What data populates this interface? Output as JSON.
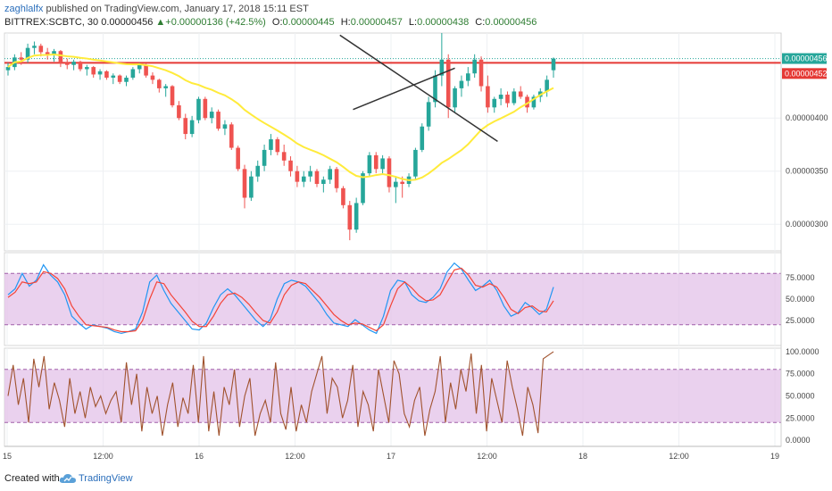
{
  "header": {
    "author": "zaghlalfx",
    "published": "published on TradingView.com, January 17, 2018 15:11 EST",
    "symbol": "BITTREX:SCBTC, 30",
    "last": "0.00000456",
    "change_arrow": "▲",
    "change": "+0.00000136 (+42.5%)",
    "o_label": "O:",
    "o": "0.00000445",
    "h_label": "H:",
    "h": "0.00000457",
    "l_label": "L:",
    "l": "0.00000438",
    "c_label": "C:",
    "c": "0.00000456"
  },
  "footer": {
    "created": "Created with",
    "brand": "TradingView",
    "logo_icon": "tradingview-cloud-icon"
  },
  "colors": {
    "up": "#26a69a",
    "down": "#ef5350",
    "ma": "#ffeb3b",
    "resistance": "#e53935",
    "trendline": "#333333",
    "stoch_k": "#2196f3",
    "stoch_d": "#f44336",
    "stoch_band": "#e1bee7",
    "osc": "#a0522d",
    "last_badge": "#26a69a",
    "res_badge": "#e53935"
  },
  "chart_data": [
    {
      "type": "candlestick",
      "symbol": "BITTREX:SCBTC",
      "interval": "30",
      "x_ticks": [
        "15",
        "12:00",
        "16",
        "12:00",
        "17",
        "12:00",
        "18",
        "12:00",
        "19"
      ],
      "y_ticks": [
        "0.00000400",
        "0.00000350",
        "0.00000300"
      ],
      "y_tick_values": [
        400,
        350,
        300
      ],
      "ylim": [
        275,
        480
      ],
      "unit_note": "values x 1e-8",
      "last_price_label": "0.00000456",
      "resistance_label": "0.00000452",
      "resistance": 452,
      "trendlines": [
        {
          "name": "descending",
          "from": [
            50.5,
            478
          ],
          "to": [
            74.5,
            378
          ]
        },
        {
          "name": "ascending",
          "from": [
            52.5,
            408
          ],
          "to": [
            68,
            447
          ]
        }
      ],
      "candles": [
        [
          445,
          452,
          440,
          448
        ],
        [
          448,
          460,
          445,
          457
        ],
        [
          457,
          462,
          450,
          455
        ],
        [
          455,
          470,
          452,
          466
        ],
        [
          466,
          472,
          460,
          468
        ],
        [
          468,
          470,
          458,
          462
        ],
        [
          462,
          466,
          455,
          460
        ],
        [
          460,
          465,
          453,
          463
        ],
        [
          463,
          464,
          448,
          452
        ],
        [
          452,
          456,
          446,
          450
        ],
        [
          450,
          455,
          445,
          453
        ],
        [
          453,
          454,
          444,
          446
        ],
        [
          446,
          450,
          440,
          448
        ],
        [
          448,
          449,
          438,
          441
        ],
        [
          441,
          446,
          436,
          444
        ],
        [
          444,
          445,
          436,
          438
        ],
        [
          438,
          442,
          432,
          440
        ],
        [
          440,
          441,
          432,
          434
        ],
        [
          434,
          440,
          430,
          438
        ],
        [
          438,
          448,
          436,
          446
        ],
        [
          446,
          452,
          442,
          450
        ],
        [
          450,
          451,
          438,
          440
        ],
        [
          440,
          443,
          432,
          436
        ],
        [
          436,
          437,
          424,
          428
        ],
        [
          428,
          432,
          420,
          430
        ],
        [
          430,
          431,
          410,
          412
        ],
        [
          412,
          416,
          398,
          400
        ],
        [
          400,
          404,
          380,
          385
        ],
        [
          385,
          402,
          382,
          398
        ],
        [
          398,
          420,
          395,
          418
        ],
        [
          418,
          420,
          398,
          400
        ],
        [
          400,
          410,
          395,
          406
        ],
        [
          406,
          408,
          388,
          390
        ],
        [
          390,
          398,
          384,
          394
        ],
        [
          394,
          396,
          370,
          372
        ],
        [
          372,
          374,
          350,
          352
        ],
        [
          352,
          356,
          315,
          325
        ],
        [
          325,
          350,
          322,
          345
        ],
        [
          345,
          360,
          340,
          355
        ],
        [
          355,
          375,
          350,
          370
        ],
        [
          370,
          385,
          365,
          380
        ],
        [
          380,
          382,
          365,
          368
        ],
        [
          368,
          375,
          355,
          360
        ],
        [
          360,
          364,
          345,
          350
        ],
        [
          350,
          355,
          335,
          340
        ],
        [
          340,
          350,
          335,
          345
        ],
        [
          345,
          355,
          340,
          350
        ],
        [
          350,
          352,
          335,
          338
        ],
        [
          338,
          345,
          330,
          342
        ],
        [
          342,
          355,
          338,
          352
        ],
        [
          352,
          354,
          330,
          334
        ],
        [
          334,
          336,
          315,
          318
        ],
        [
          318,
          322,
          285,
          295
        ],
        [
          295,
          325,
          292,
          320
        ],
        [
          320,
          350,
          318,
          348
        ],
        [
          348,
          368,
          345,
          365
        ],
        [
          365,
          368,
          348,
          352
        ],
        [
          352,
          365,
          348,
          362
        ],
        [
          362,
          364,
          330,
          335
        ],
        [
          335,
          345,
          320,
          340
        ],
        [
          340,
          345,
          325,
          338
        ],
        [
          338,
          348,
          335,
          345
        ],
        [
          345,
          372,
          342,
          370
        ],
        [
          370,
          395,
          368,
          392
        ],
        [
          392,
          420,
          388,
          415
        ],
        [
          415,
          445,
          410,
          440
        ],
        [
          440,
          480,
          430,
          455
        ],
        [
          455,
          460,
          400,
          410
        ],
        [
          410,
          430,
          405,
          428
        ],
        [
          428,
          440,
          420,
          435
        ],
        [
          435,
          448,
          430,
          442
        ],
        [
          442,
          460,
          438,
          455
        ],
        [
          455,
          458,
          425,
          430
        ],
        [
          430,
          440,
          405,
          410
        ],
        [
          410,
          420,
          405,
          418
        ],
        [
          418,
          428,
          412,
          422
        ],
        [
          422,
          425,
          410,
          414
        ],
        [
          414,
          428,
          412,
          425
        ],
        [
          425,
          430,
          418,
          420
        ],
        [
          420,
          422,
          405,
          410
        ],
        [
          410,
          422,
          408,
          420
        ],
        [
          420,
          428,
          415,
          425
        ],
        [
          425,
          440,
          420,
          436
        ],
        [
          445,
          457,
          438,
          456
        ]
      ],
      "ma_period": 20
    },
    {
      "type": "line",
      "name": "Stochastic",
      "y_ticks": [
        "75.0000",
        "50.0000",
        "25.0000"
      ],
      "y_tick_values": [
        75,
        50,
        25
      ],
      "band": [
        20,
        80
      ],
      "ylim": [
        0,
        100
      ],
      "series": [
        {
          "key": "k",
          "values": [
            55,
            62,
            80,
            65,
            72,
            90,
            78,
            70,
            55,
            30,
            22,
            15,
            20,
            18,
            16,
            12,
            10,
            12,
            15,
            35,
            70,
            78,
            60,
            45,
            35,
            25,
            15,
            14,
            22,
            40,
            55,
            62,
            55,
            45,
            35,
            25,
            18,
            26,
            50,
            68,
            72,
            70,
            65,
            55,
            45,
            32,
            22,
            20,
            18,
            26,
            20,
            14,
            10,
            30,
            60,
            72,
            70,
            55,
            48,
            46,
            52,
            62,
            82,
            92,
            85,
            72,
            60,
            65,
            72,
            60,
            42,
            30,
            34,
            46,
            40,
            32,
            38,
            64
          ]
        },
        {
          "key": "d",
          "values": [
            52,
            58,
            70,
            68,
            70,
            82,
            80,
            74,
            62,
            42,
            30,
            20,
            19,
            18,
            17,
            14,
            12,
            12,
            13,
            25,
            50,
            70,
            68,
            55,
            45,
            35,
            24,
            18,
            18,
            30,
            45,
            55,
            57,
            52,
            44,
            34,
            25,
            22,
            35,
            55,
            66,
            70,
            68,
            60,
            52,
            42,
            32,
            25,
            20,
            22,
            21,
            17,
            13,
            20,
            42,
            62,
            70,
            63,
            54,
            48,
            49,
            55,
            70,
            84,
            86,
            78,
            66,
            64,
            68,
            64,
            52,
            38,
            33,
            40,
            42,
            36,
            35,
            48
          ]
        }
      ]
    },
    {
      "type": "line",
      "name": "Oscillator",
      "y_ticks": [
        "100.0000",
        "75.0000",
        "50.0000",
        "25.0000",
        "0.0000"
      ],
      "y_tick_values": [
        100,
        75,
        50,
        25,
        0
      ],
      "band": [
        20,
        80
      ],
      "ylim": [
        -5,
        102
      ],
      "series": [
        {
          "key": "osc",
          "values": [
            50,
            85,
            40,
            70,
            20,
            92,
            60,
            95,
            35,
            65,
            45,
            15,
            70,
            30,
            55,
            25,
            60,
            38,
            50,
            30,
            45,
            55,
            20,
            88,
            40,
            75,
            10,
            60,
            30,
            50,
            5,
            40,
            65,
            15,
            48,
            30,
            85,
            20,
            95,
            10,
            55,
            5,
            60,
            40,
            80,
            15,
            50,
            70,
            5,
            30,
            45,
            20,
            88,
            30,
            12,
            60,
            10,
            40,
            20,
            55,
            75,
            95,
            30,
            70,
            60,
            25,
            45,
            85,
            15,
            55,
            40,
            10,
            80,
            50,
            20,
            90,
            75,
            30,
            15,
            45,
            60,
            5,
            35,
            55,
            95,
            20,
            65,
            35,
            80,
            55,
            98,
            30,
            85,
            10,
            70,
            45,
            20,
            90,
            60,
            35,
            5,
            60,
            40,
            8,
            92,
            96,
            100
          ]
        }
      ]
    }
  ]
}
